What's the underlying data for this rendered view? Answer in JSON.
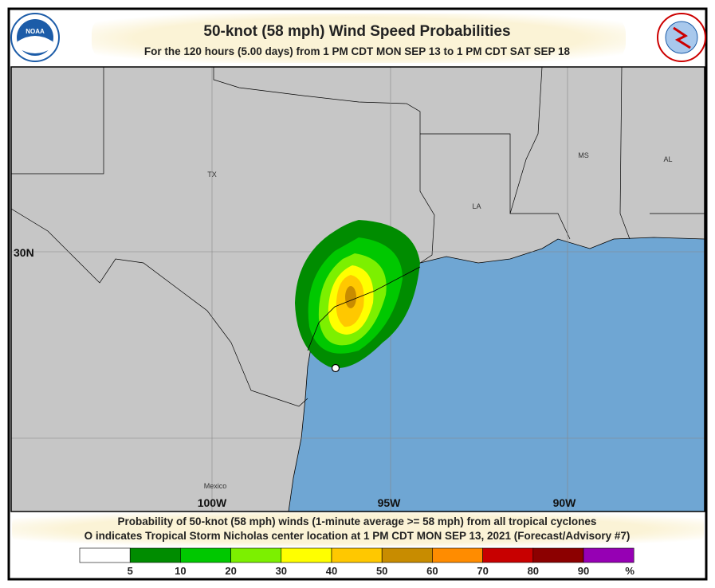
{
  "header": {
    "title": "50-knot (58 mph) Wind Speed Probabilities",
    "subtitle": "For the 120 hours (5.00 days) from 1 PM CDT MON SEP 13 to 1 PM CDT SAT SEP 18",
    "left_logo": "NOAA",
    "right_logo": "NATIONAL WEATHER SERVICE"
  },
  "map": {
    "labels": [
      "TX",
      "LA",
      "MS",
      "AL",
      "Mexico"
    ],
    "lat_labels": [
      "30N"
    ],
    "lon_labels": [
      "100W",
      "95W",
      "90W"
    ]
  },
  "footer": {
    "line1": "Probability of 50-knot (58 mph) winds (1-minute average >= 58 mph) from all tropical cyclones",
    "line2": "O indicates Tropical Storm Nicholas center location at 1 PM CDT MON SEP 13, 2021 (Forecast/Advisory #7)"
  },
  "legend": {
    "ticks": [
      5,
      10,
      20,
      30,
      40,
      50,
      60,
      70,
      80,
      90
    ],
    "unit": "%",
    "colors": [
      "#ffffff",
      "#008c00",
      "#00c800",
      "#7cf000",
      "#ffff00",
      "#ffc800",
      "#c88c00",
      "#ff8c00",
      "#c80000",
      "#8c0000",
      "#9600b4"
    ]
  }
}
